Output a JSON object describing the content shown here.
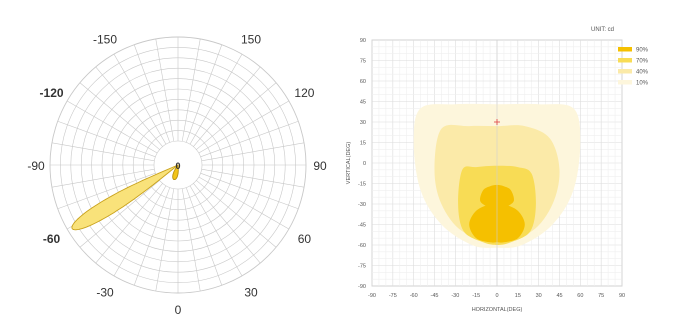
{
  "chart_data": [
    {
      "type": "polar",
      "angular_ticks": [
        {
          "value": 0,
          "label": "0",
          "bold": true,
          "outer": false
        },
        {
          "value": -150,
          "label": "-150",
          "bold": false,
          "outer": true
        },
        {
          "value": 150,
          "label": "150",
          "bold": false,
          "outer": true
        },
        {
          "value": -120,
          "label": "-120",
          "bold": true,
          "outer": true
        },
        {
          "value": 120,
          "label": "120",
          "bold": false,
          "outer": true
        },
        {
          "value": -90,
          "label": "-90",
          "bold": false,
          "outer": true
        },
        {
          "value": 90,
          "label": "90",
          "bold": false,
          "outer": true
        },
        {
          "value": -60,
          "label": "-60",
          "bold": true,
          "outer": true
        },
        {
          "value": 60,
          "label": "60",
          "bold": false,
          "outer": true
        },
        {
          "value": -30,
          "label": "-30",
          "bold": false,
          "outer": true
        },
        {
          "value": 30,
          "label": "30",
          "bold": false,
          "outer": true
        },
        {
          "value": 0,
          "label": "0",
          "bold": false,
          "outer": true
        }
      ],
      "grid": true,
      "series": [
        {
          "color": "#f9e27a",
          "edge": "#c9a21c",
          "direction_deg": -59,
          "spread_deg": 8,
          "relative_length": 0.98
        },
        {
          "color": "#f2c418",
          "edge": "#b8900e",
          "direction_deg": -15,
          "spread_deg": 20,
          "relative_length": 0.12
        }
      ]
    },
    {
      "type": "contour",
      "unit_label": "UNIT: cd",
      "xlabel": "HORIZONTAL(DEG)",
      "ylabel": "VERTICAL(DEG)",
      "xlim": [
        -90,
        90
      ],
      "ylim": [
        -90,
        90
      ],
      "xticks": [
        -90,
        -75,
        -60,
        -45,
        -30,
        -15,
        0,
        15,
        30,
        45,
        60,
        75,
        90
      ],
      "yticks": [
        90,
        75,
        60,
        45,
        30,
        15,
        0,
        -15,
        -30,
        -45,
        -60,
        -75,
        -90
      ],
      "grid": true,
      "legend": [
        {
          "label": "90%",
          "color": "#f5c000"
        },
        {
          "label": "70%",
          "color": "#f8dc55"
        },
        {
          "label": "40%",
          "color": "#fbeaa8"
        },
        {
          "label": "10%",
          "color": "#fdf6dc"
        }
      ],
      "marker": {
        "x": 0,
        "y": 30
      },
      "contours": [
        {
          "level": "10%",
          "color": "#fdf6dc",
          "points": [
            [
              -55,
              40
            ],
            [
              -30,
              43
            ],
            [
              0,
              43
            ],
            [
              30,
              43
            ],
            [
              55,
              40
            ],
            [
              60,
              15
            ],
            [
              55,
              -20
            ],
            [
              40,
              -45
            ],
            [
              18,
              -60
            ],
            [
              0,
              -62
            ],
            [
              -18,
              -60
            ],
            [
              -40,
              -45
            ],
            [
              -55,
              -20
            ],
            [
              -60,
              15
            ]
          ]
        },
        {
          "level": "40%",
          "color": "#fbeaa8",
          "points": [
            [
              -40,
              25
            ],
            [
              -20,
              27
            ],
            [
              0,
              27
            ],
            [
              20,
              27
            ],
            [
              38,
              18
            ],
            [
              45,
              -5
            ],
            [
              40,
              -30
            ],
            [
              25,
              -50
            ],
            [
              0,
              -58
            ],
            [
              -25,
              -50
            ],
            [
              -40,
              -30
            ],
            [
              -45,
              -5
            ]
          ]
        },
        {
          "level": "70%",
          "color": "#f8dc55",
          "points": [
            [
              -25,
              -5
            ],
            [
              -15,
              -3
            ],
            [
              0,
              -2
            ],
            [
              15,
              -3
            ],
            [
              25,
              -8
            ],
            [
              28,
              -30
            ],
            [
              24,
              -50
            ],
            [
              10,
              -58
            ],
            [
              0,
              -60
            ],
            [
              -10,
              -58
            ],
            [
              -24,
              -50
            ],
            [
              -28,
              -30
            ]
          ]
        },
        {
          "level": "90%",
          "color": "#f5c000",
          "points": [
            [
              -10,
              -20
            ],
            [
              -5,
              -17
            ],
            [
              0,
              -16
            ],
            [
              5,
              -17
            ],
            [
              10,
              -20
            ],
            [
              12,
              -28
            ],
            [
              5,
              -33
            ],
            [
              0,
              -34
            ],
            [
              -5,
              -33
            ],
            [
              -12,
              -28
            ]
          ]
        },
        {
          "level": "90%",
          "color": "#f5c000",
          "points": [
            [
              -15,
              -35
            ],
            [
              -5,
              -30
            ],
            [
              0,
              -29
            ],
            [
              5,
              -30
            ],
            [
              15,
              -35
            ],
            [
              20,
              -45
            ],
            [
              15,
              -55
            ],
            [
              5,
              -58
            ],
            [
              0,
              -58
            ],
            [
              -5,
              -58
            ],
            [
              -15,
              -55
            ],
            [
              -20,
              -45
            ]
          ]
        }
      ]
    }
  ]
}
